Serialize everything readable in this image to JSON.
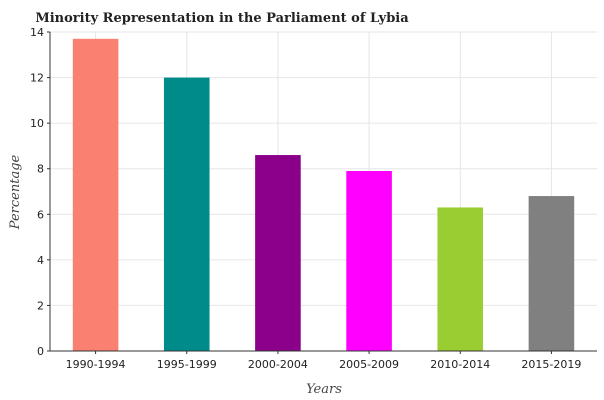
{
  "chart_data": {
    "type": "bar",
    "title": "Minority Representation in the Parliament of Lybia",
    "xlabel": "Years",
    "ylabel": "Percentage",
    "categories": [
      "1990-1994",
      "1995-1999",
      "2000-2004",
      "2005-2009",
      "2010-2014",
      "2015-2019"
    ],
    "values": [
      13.7,
      12.0,
      8.6,
      7.9,
      6.3,
      6.8
    ],
    "colors": [
      "#fa8072",
      "#008b8b",
      "#8b008b",
      "#ff00ff",
      "#9acd32",
      "#808080"
    ],
    "ylim": [
      0,
      14
    ],
    "yticks": [
      0,
      2,
      4,
      6,
      8,
      10,
      12,
      14
    ],
    "grid": true,
    "legend": "none"
  }
}
